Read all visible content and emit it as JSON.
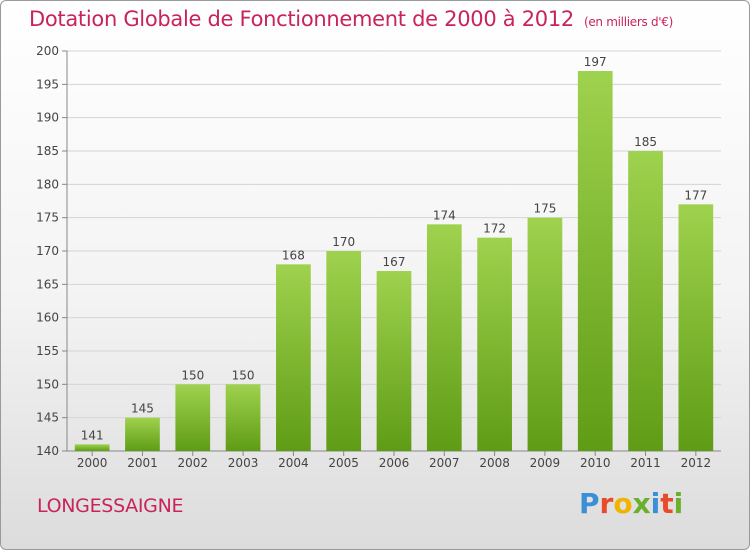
{
  "title": "Dotation Globale de Fonctionnement de 2000 à 2012",
  "unit": "(en milliers d'€)",
  "commune": "LONGESSAIGNE",
  "logo": {
    "p": "P",
    "r": "r",
    "o": "o",
    "x": "x",
    "i": "i",
    "t": "t",
    "i2": "i"
  },
  "colors": {
    "title": "#c8245a",
    "bar_top": "#9fd24e",
    "bar_bottom": "#5f9c15"
  },
  "chart_data": {
    "type": "bar",
    "categories": [
      "2000",
      "2001",
      "2002",
      "2003",
      "2004",
      "2005",
      "2006",
      "2007",
      "2008",
      "2009",
      "2010",
      "2011",
      "2012"
    ],
    "values": [
      141,
      145,
      150,
      150,
      168,
      170,
      167,
      174,
      172,
      175,
      197,
      185,
      177
    ],
    "ylim": [
      140,
      200
    ],
    "yticks": [
      140,
      145,
      150,
      155,
      160,
      165,
      170,
      175,
      180,
      185,
      190,
      195,
      200
    ],
    "grid": true,
    "data_labels": true
  }
}
